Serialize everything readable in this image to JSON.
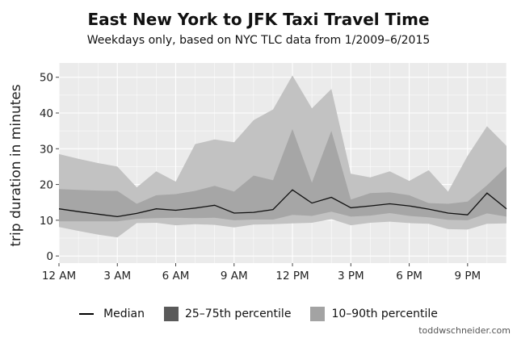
{
  "title": "East New York to JFK Taxi Travel Time",
  "subtitle": "Weekdays only, based on NYC TLC data from 1/2009–6/2015",
  "credit": "toddwschneider.com",
  "colors": {
    "outer_band": "#c2c2c2",
    "inner_band": "#a6a6a6",
    "median": "#111111",
    "panel_bg": "#ebebeb",
    "grid": "#ffffff",
    "legend_outer": "#a3a3a3",
    "legend_inner": "#5a5a5a"
  },
  "legend": {
    "median": "Median",
    "iqr": "25–75th percentile",
    "p10_90": "10–90th percentile"
  },
  "chart_data": {
    "type": "area",
    "title": "East New York to JFK Taxi Travel Time",
    "subtitle": "Weekdays only, based on NYC TLC data from 1/2009–6/2015",
    "xlabel": "",
    "ylabel": "trip duration in minutes",
    "x_hours": [
      0,
      1,
      2,
      3,
      4,
      5,
      6,
      7,
      8,
      9,
      10,
      11,
      12,
      13,
      14,
      15,
      16,
      17,
      18,
      19,
      20,
      21,
      22,
      23
    ],
    "x_ticks": [
      {
        "hour": 0,
        "label": "12 AM"
      },
      {
        "hour": 3,
        "label": "3 AM"
      },
      {
        "hour": 6,
        "label": "6 AM"
      },
      {
        "hour": 9,
        "label": "9 AM"
      },
      {
        "hour": 12,
        "label": "12 PM"
      },
      {
        "hour": 15,
        "label": "3 PM"
      },
      {
        "hour": 18,
        "label": "6 PM"
      },
      {
        "hour": 21,
        "label": "9 PM"
      }
    ],
    "xlim": [
      0,
      23
    ],
    "y_ticks": [
      0,
      10,
      20,
      30,
      40,
      50
    ],
    "ylim": [
      -2,
      54
    ],
    "grid": true,
    "legend_position": "bottom",
    "series": [
      {
        "name": "Median",
        "values": [
          13.2,
          12.4,
          11.7,
          11.0,
          11.9,
          13.2,
          12.8,
          13.4,
          14.2,
          12.0,
          12.2,
          13.0,
          18.5,
          14.8,
          16.4,
          13.5,
          14.0,
          14.6,
          14.0,
          13.1,
          12.0,
          11.5,
          17.6,
          13.2
        ]
      },
      {
        "name": "25–75th percentile",
        "lower": [
          9.7,
          9.7,
          9.7,
          9.7,
          10.4,
          10.6,
          10.7,
          10.6,
          10.7,
          10.0,
          10.2,
          10.2,
          11.5,
          11.2,
          12.4,
          11.0,
          11.3,
          12.0,
          11.2,
          10.8,
          10.1,
          10.0,
          11.9,
          11.0
        ],
        "upper": [
          18.7,
          18.5,
          18.3,
          18.2,
          14.6,
          17.0,
          17.3,
          18.2,
          19.6,
          18.0,
          22.5,
          21.2,
          35.5,
          20.5,
          35.0,
          15.8,
          17.6,
          17.8,
          17.0,
          14.8,
          14.6,
          15.2,
          19.8,
          25.0
        ]
      },
      {
        "name": "10–90th percentile",
        "lower": [
          8.1,
          7.0,
          6.0,
          5.2,
          9.2,
          9.3,
          8.6,
          8.9,
          8.7,
          8.0,
          8.8,
          8.9,
          9.1,
          9.3,
          10.3,
          8.6,
          9.3,
          9.6,
          9.2,
          9.0,
          7.5,
          7.4,
          9.0,
          9.1
        ],
        "upper": [
          28.5,
          27.2,
          26.0,
          25.0,
          19.2,
          23.7,
          20.8,
          31.3,
          32.6,
          31.8,
          38.0,
          41.0,
          50.5,
          41.3,
          46.7,
          23.0,
          22.0,
          23.7,
          21.0,
          24.0,
          18.0,
          28.0,
          36.3,
          30.8
        ]
      }
    ]
  }
}
